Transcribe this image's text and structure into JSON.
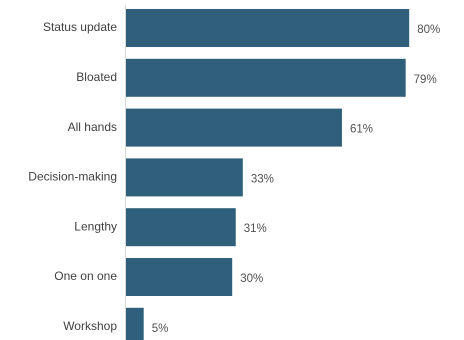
{
  "chart_data": {
    "type": "bar",
    "orientation": "horizontal",
    "categories": [
      "Status update",
      "Bloated",
      "All hands",
      "Decision-making",
      "Lengthy",
      "One on one",
      "Workshop"
    ],
    "values": [
      80,
      79,
      61,
      33,
      31,
      30,
      5
    ],
    "value_labels": [
      "80%",
      "79%",
      "61%",
      "33%",
      "31%",
      "30%",
      "5%"
    ],
    "xlim": [
      0,
      100
    ],
    "grid": false,
    "legend": "none",
    "bar_color": "#2f5f7b"
  }
}
